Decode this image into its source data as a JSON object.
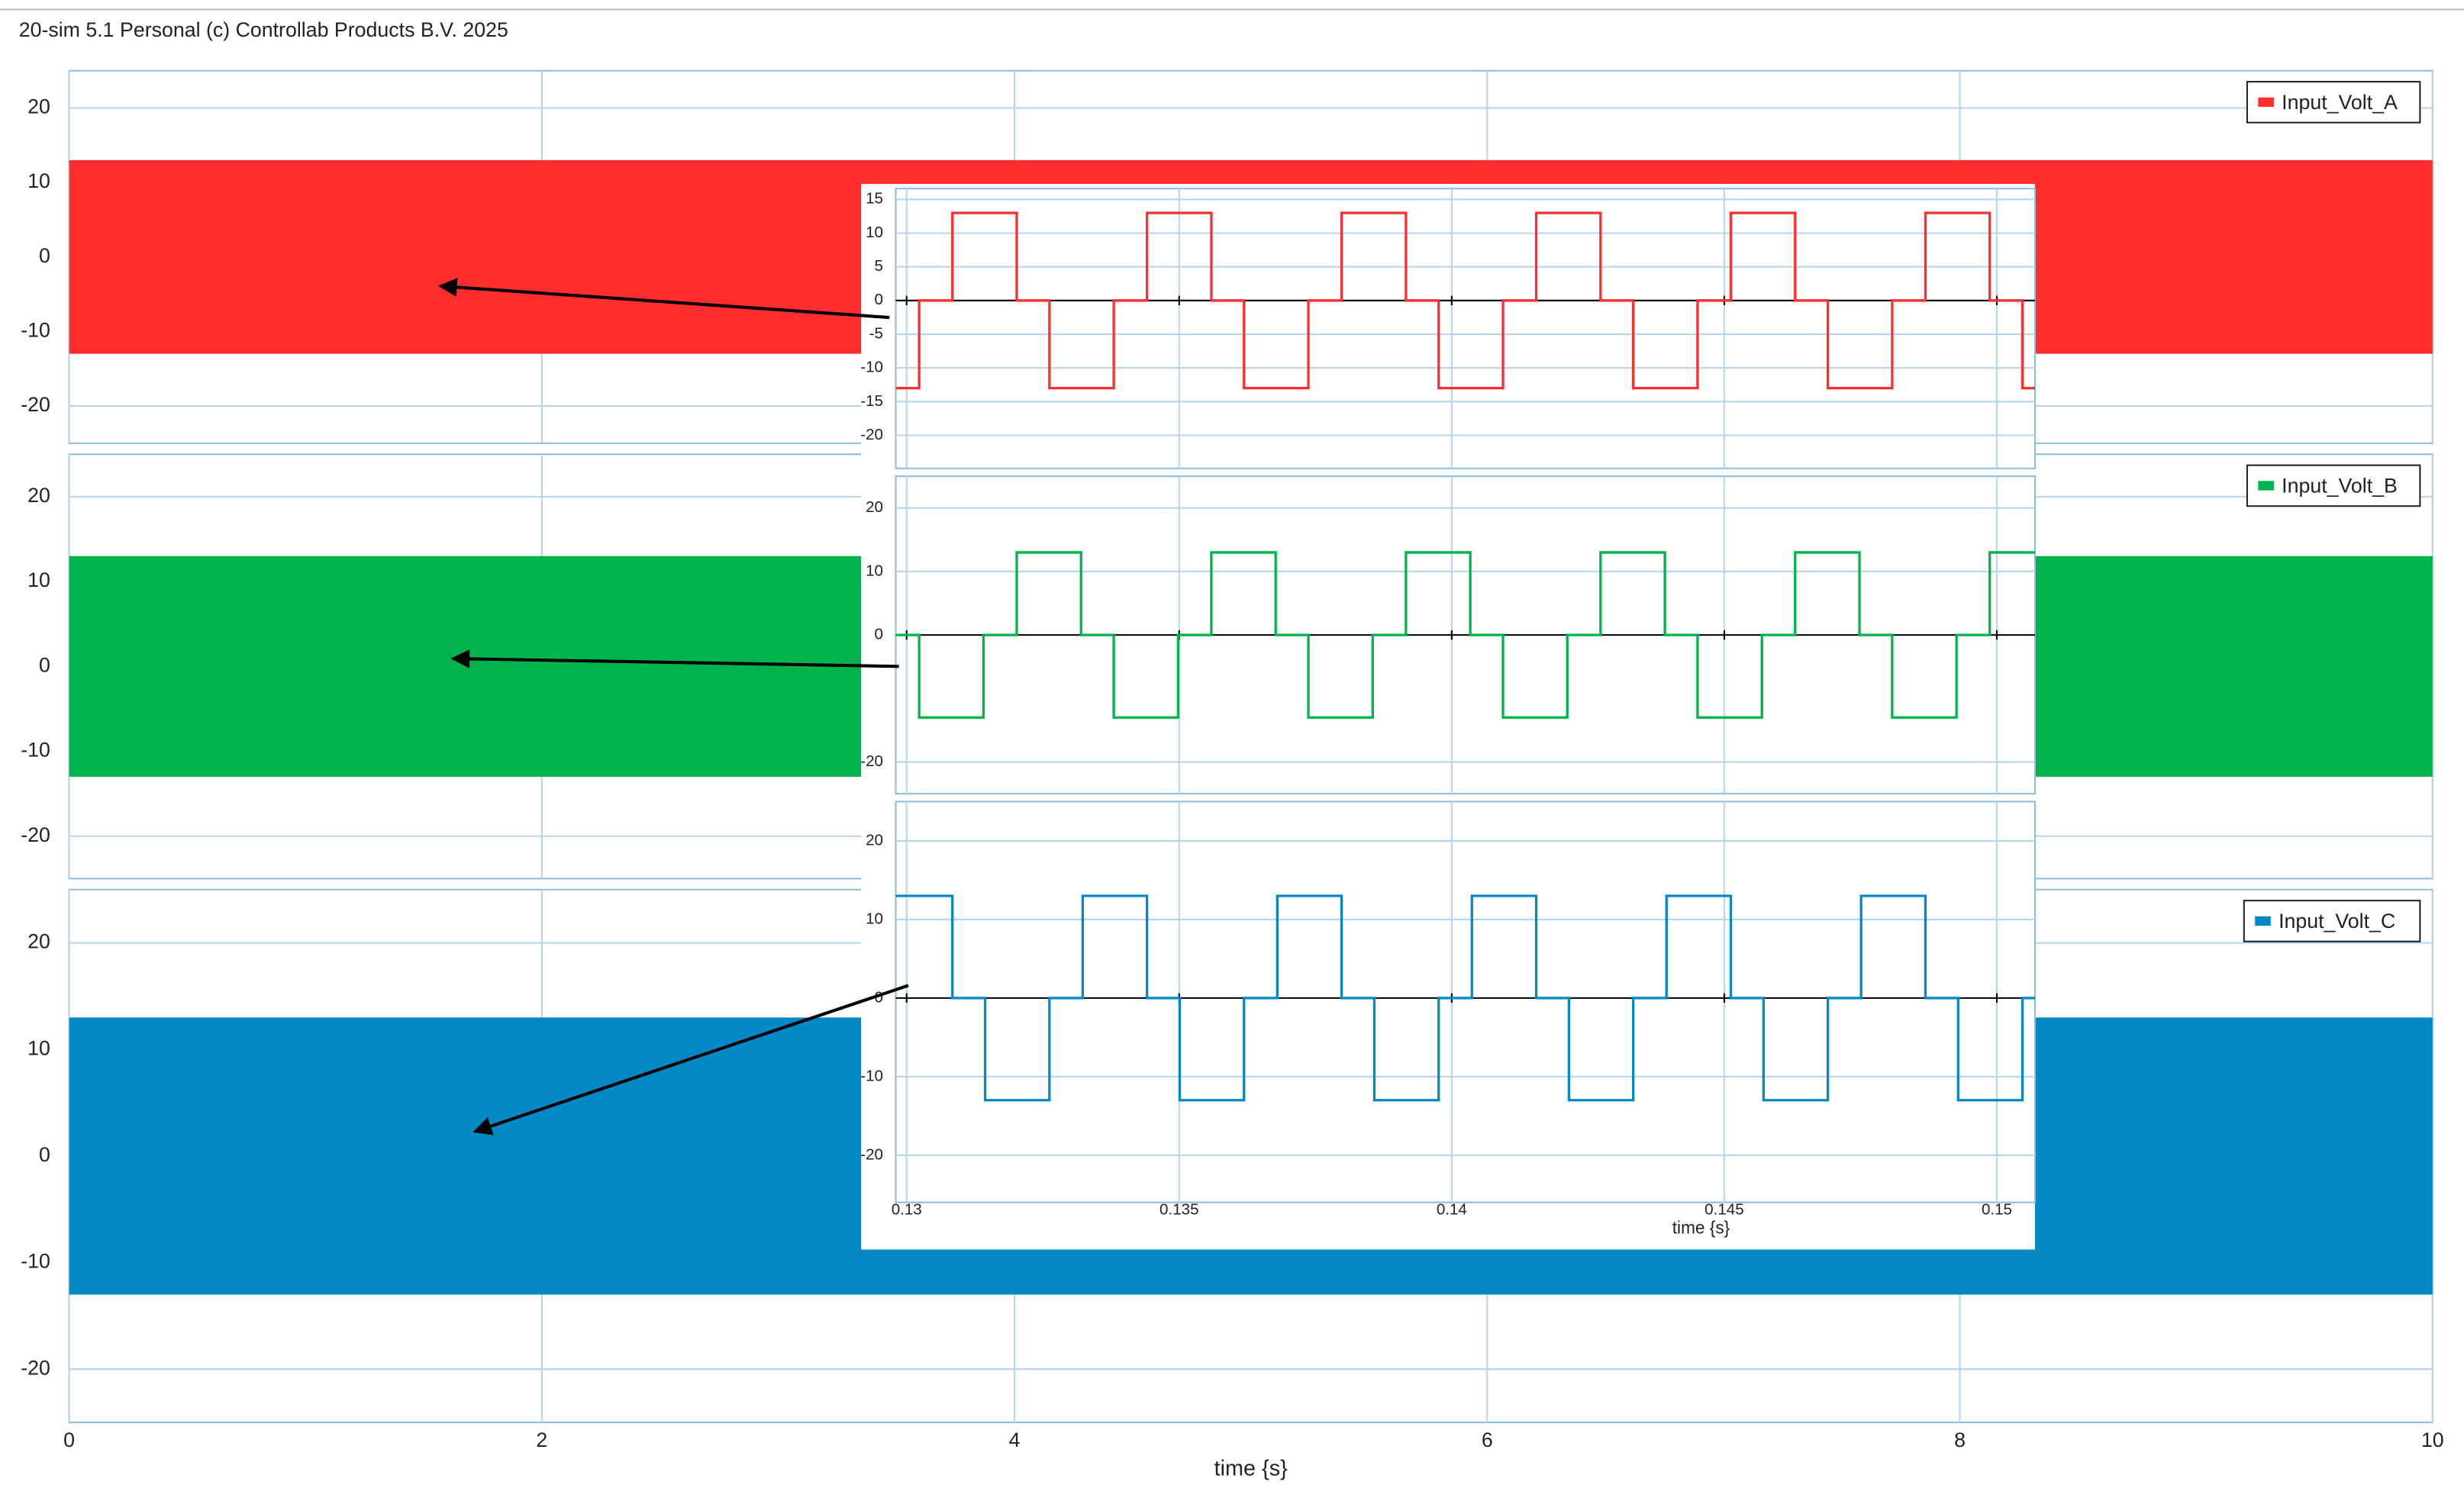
{
  "window_title": "20-sim 5.1 Personal (c) Controllab Products B.V. 2025",
  "chart_data": [
    {
      "type": "band",
      "xlim": [
        0,
        10
      ],
      "xticks": [
        0,
        2,
        4,
        6,
        8,
        10
      ],
      "xtick_labels": false,
      "ylim": [
        -25,
        25
      ],
      "yticks": [
        20,
        10,
        0,
        -10,
        -20
      ],
      "grid": true,
      "legend": "upper right",
      "series": [
        {
          "name": "Input_Volt_A",
          "color": "#ff2d2d",
          "x": [
            0,
            10
          ],
          "upper": [
            13,
            13
          ],
          "lower": [
            -13,
            -13
          ]
        }
      ]
    },
    {
      "type": "band",
      "xlim": [
        0,
        10
      ],
      "xticks": [
        0,
        2,
        4,
        6,
        8,
        10
      ],
      "xtick_labels": false,
      "ylim": [
        -25,
        25
      ],
      "yticks": [
        20,
        10,
        0,
        -10,
        -20
      ],
      "grid": true,
      "legend": "upper right",
      "series": [
        {
          "name": "Input_Volt_B",
          "color": "#00b34a",
          "x": [
            0,
            10
          ],
          "upper": [
            13,
            13
          ],
          "lower": [
            -13,
            -13
          ]
        }
      ]
    },
    {
      "type": "band",
      "xlim": [
        0,
        10
      ],
      "xticks": [
        0,
        2,
        4,
        6,
        8,
        10
      ],
      "xtick_labels": true,
      "xlabel": "time {s}",
      "ylim": [
        -25,
        25
      ],
      "yticks": [
        20,
        10,
        0,
        -10,
        -20
      ],
      "grid": true,
      "legend": "upper right",
      "series": [
        {
          "name": "Input_Volt_C",
          "color": "#0589c6",
          "x": [
            0,
            10
          ],
          "upper": [
            13,
            13
          ],
          "lower": [
            -13,
            -13
          ]
        }
      ]
    },
    {
      "type": "line",
      "step": true,
      "zero_line": true,
      "xlim": [
        0.1298,
        0.1507
      ],
      "xticks": [
        0.13,
        0.135,
        0.14,
        0.145,
        0.15
      ],
      "xtick_labels": false,
      "ylim": [
        -24.9,
        16.6
      ],
      "yticks": [
        15,
        10,
        5,
        0,
        -5,
        -10,
        -15,
        -20
      ],
      "grid": true,
      "series": [
        {
          "color": "#ff2d2d",
          "x": [
            0.1298,
            0.13023,
            0.13084,
            0.13202,
            0.13262,
            0.1338,
            0.13441,
            0.13559,
            0.13619,
            0.13737,
            0.13798,
            0.13916,
            0.13976,
            0.14094,
            0.14155,
            0.14273,
            0.14333,
            0.14451,
            0.14512,
            0.1463,
            0.1469,
            0.14808,
            0.14869,
            0.14987,
            0.15047,
            0.1507
          ],
          "values": [
            -13,
            0,
            13,
            0,
            -13,
            0,
            13,
            0,
            -13,
            0,
            13,
            0,
            -13,
            0,
            13,
            0,
            -13,
            0,
            13,
            0,
            -13,
            0,
            13,
            0,
            -13,
            -13
          ]
        }
      ]
    },
    {
      "type": "line",
      "step": true,
      "zero_line": true,
      "xlim": [
        0.1298,
        0.1507
      ],
      "xticks": [
        0.13,
        0.135,
        0.14,
        0.145,
        0.15
      ],
      "xtick_labels": false,
      "ylim": [
        -25,
        25
      ],
      "yticks": [
        20,
        10,
        0,
        -20
      ],
      "grid": true,
      "series": [
        {
          "color": "#00b34a",
          "x": [
            0.1298,
            0.13023,
            0.13141,
            0.13202,
            0.1332,
            0.1338,
            0.13498,
            0.13559,
            0.13677,
            0.13737,
            0.13855,
            0.13916,
            0.14034,
            0.14094,
            0.14212,
            0.14273,
            0.14391,
            0.14451,
            0.14569,
            0.1463,
            0.14748,
            0.14808,
            0.14926,
            0.14987,
            0.1507
          ],
          "values": [
            0,
            -13,
            0,
            13,
            0,
            -13,
            0,
            13,
            0,
            -13,
            0,
            13,
            0,
            -13,
            0,
            13,
            0,
            -13,
            0,
            13,
            0,
            -13,
            0,
            13,
            13
          ]
        }
      ]
    },
    {
      "type": "line",
      "step": true,
      "zero_line": true,
      "xlim": [
        0.1298,
        0.1507
      ],
      "xticks": [
        0.13,
        0.135,
        0.14,
        0.145,
        0.15
      ],
      "xtick_labels": true,
      "xlabel": "time {s}",
      "ylim": [
        -26,
        25
      ],
      "yticks": [
        20,
        10,
        0,
        -10,
        -20
      ],
      "grid": true,
      "series": [
        {
          "color": "#0589c6",
          "x": [
            0.1298,
            0.13084,
            0.13144,
            0.13262,
            0.13323,
            0.13441,
            0.13501,
            0.13619,
            0.1368,
            0.13798,
            0.13858,
            0.13976,
            0.14037,
            0.14155,
            0.14215,
            0.14333,
            0.14394,
            0.14512,
            0.14572,
            0.1469,
            0.14751,
            0.14869,
            0.14929,
            0.15047,
            0.1507
          ],
          "values": [
            13,
            0,
            -13,
            0,
            13,
            0,
            -13,
            0,
            13,
            0,
            -13,
            0,
            13,
            0,
            -13,
            0,
            13,
            0,
            -13,
            0,
            13,
            0,
            -13,
            0,
            0
          ]
        }
      ]
    }
  ]
}
